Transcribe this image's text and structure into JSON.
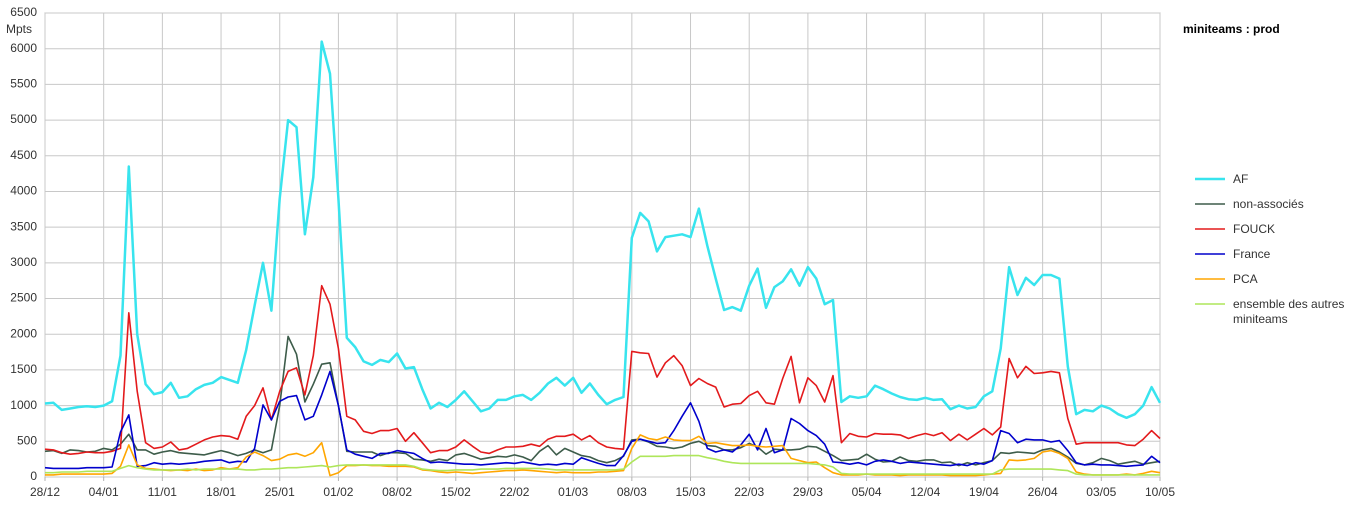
{
  "chart_data": {
    "type": "line",
    "title": "miniteams : prod",
    "ylabel": "Mpts",
    "categories": [
      "28/12",
      null,
      null,
      null,
      null,
      null,
      null,
      "04/01",
      null,
      null,
      null,
      null,
      null,
      null,
      "11/01",
      null,
      null,
      null,
      null,
      null,
      null,
      "18/01",
      null,
      null,
      null,
      null,
      null,
      null,
      "25/01",
      null,
      null,
      null,
      null,
      null,
      null,
      "01/02",
      null,
      null,
      null,
      null,
      null,
      null,
      "08/02",
      null,
      null,
      null,
      null,
      null,
      null,
      "15/02",
      null,
      null,
      null,
      null,
      null,
      null,
      "22/02",
      null,
      null,
      null,
      null,
      null,
      null,
      "01/03",
      null,
      null,
      null,
      null,
      null,
      null,
      "08/03",
      null,
      null,
      null,
      null,
      null,
      null,
      "15/03",
      null,
      null,
      null,
      null,
      null,
      null,
      "22/03",
      null,
      null,
      null,
      null,
      null,
      null,
      "29/03",
      null,
      null,
      null,
      null,
      null,
      null,
      "05/04",
      null,
      null,
      null,
      null,
      null,
      null,
      "12/04",
      null,
      null,
      null,
      null,
      null,
      null,
      "19/04",
      null,
      null,
      null,
      null,
      null,
      null,
      "26/04",
      null,
      null,
      null,
      null,
      null,
      null,
      "03/05",
      null,
      null,
      null,
      null,
      null,
      null,
      "10/05"
    ],
    "ylim": [
      0,
      6500
    ],
    "yticks": [
      0,
      500,
      1000,
      1500,
      2000,
      2500,
      3000,
      3500,
      4000,
      4500,
      5000,
      5500,
      6000,
      6500
    ],
    "grid": true,
    "series": [
      {
        "name": "AF",
        "color": "#38e4ee",
        "values": [
          1030,
          1040,
          940,
          960,
          980,
          990,
          980,
          1000,
          1060,
          1700,
          4350,
          2000,
          1300,
          1160,
          1190,
          1320,
          1110,
          1130,
          1230,
          1290,
          1320,
          1400,
          1360,
          1320,
          1780,
          2400,
          3000,
          2330,
          3900,
          5000,
          4900,
          3400,
          4200,
          6100,
          5650,
          3900,
          1950,
          1820,
          1620,
          1570,
          1640,
          1610,
          1730,
          1520,
          1540,
          1230,
          960,
          1040,
          980,
          1080,
          1200,
          1060,
          920,
          960,
          1080,
          1080,
          1130,
          1150,
          1080,
          1180,
          1310,
          1390,
          1280,
          1390,
          1180,
          1310,
          1150,
          1020,
          1080,
          1120,
          3350,
          3700,
          3580,
          3160,
          3360,
          3380,
          3400,
          3360,
          3760,
          3240,
          2780,
          2340,
          2380,
          2330,
          2680,
          2920,
          2370,
          2660,
          2740,
          2910,
          2680,
          2940,
          2780,
          2420,
          2480,
          1050,
          1130,
          1110,
          1130,
          1280,
          1230,
          1170,
          1120,
          1090,
          1080,
          1110,
          1080,
          1090,
          950,
          1000,
          960,
          980,
          1130,
          1200,
          1800,
          2940,
          2550,
          2790,
          2690,
          2830,
          2830,
          2780,
          1550,
          880,
          940,
          920,
          1000,
          960,
          880,
          830,
          880,
          1000,
          1260,
          1040
        ]
      },
      {
        "name": "non-associés",
        "color": "#3d5c4a",
        "values": [
          360,
          370,
          330,
          380,
          370,
          350,
          360,
          400,
          380,
          460,
          600,
          380,
          380,
          320,
          350,
          370,
          340,
          330,
          320,
          310,
          340,
          370,
          340,
          300,
          330,
          380,
          340,
          380,
          1000,
          1970,
          1720,
          1050,
          1300,
          1580,
          1600,
          1000,
          360,
          350,
          350,
          350,
          300,
          340,
          340,
          330,
          250,
          240,
          220,
          250,
          230,
          310,
          330,
          290,
          250,
          270,
          290,
          280,
          310,
          280,
          230,
          360,
          440,
          310,
          400,
          350,
          300,
          280,
          230,
          200,
          230,
          290,
          520,
          530,
          490,
          430,
          420,
          400,
          420,
          470,
          500,
          440,
          430,
          380,
          380,
          410,
          470,
          420,
          320,
          390,
          380,
          380,
          390,
          430,
          420,
          360,
          300,
          230,
          240,
          250,
          320,
          250,
          210,
          220,
          280,
          230,
          220,
          240,
          240,
          200,
          210,
          160,
          200,
          170,
          200,
          230,
          340,
          330,
          350,
          340,
          330,
          380,
          400,
          350,
          280,
          190,
          170,
          200,
          260,
          230,
          180,
          200,
          220,
          180,
          200,
          220
        ]
      },
      {
        "name": "FOUCK",
        "color": "#e31a1c",
        "values": [
          390,
          380,
          340,
          320,
          330,
          350,
          340,
          340,
          360,
          400,
          2300,
          1200,
          480,
          400,
          420,
          490,
          380,
          400,
          460,
          520,
          560,
          580,
          570,
          530,
          850,
          1000,
          1250,
          800,
          1200,
          1480,
          1530,
          1150,
          1700,
          2680,
          2420,
          1800,
          850,
          800,
          640,
          610,
          650,
          650,
          680,
          500,
          620,
          480,
          340,
          370,
          370,
          420,
          520,
          430,
          350,
          330,
          380,
          420,
          420,
          430,
          460,
          430,
          530,
          570,
          570,
          600,
          520,
          580,
          480,
          420,
          400,
          390,
          1760,
          1740,
          1730,
          1400,
          1600,
          1700,
          1560,
          1280,
          1380,
          1310,
          1260,
          980,
          1020,
          1030,
          1140,
          1200,
          1040,
          1020,
          1380,
          1690,
          1040,
          1390,
          1280,
          1050,
          1420,
          480,
          610,
          570,
          560,
          610,
          600,
          600,
          590,
          540,
          580,
          610,
          580,
          620,
          510,
          600,
          520,
          600,
          680,
          590,
          700,
          1660,
          1390,
          1550,
          1450,
          1460,
          1480,
          1460,
          820,
          460,
          480,
          480,
          480,
          480,
          480,
          450,
          440,
          530,
          650,
          540
        ]
      },
      {
        "name": "France",
        "color": "#0000cc",
        "values": [
          130,
          120,
          120,
          120,
          120,
          130,
          130,
          130,
          140,
          630,
          870,
          150,
          160,
          200,
          180,
          190,
          180,
          190,
          200,
          220,
          230,
          240,
          200,
          220,
          210,
          400,
          1010,
          800,
          1060,
          1120,
          1140,
          800,
          850,
          1150,
          1480,
          1000,
          380,
          320,
          290,
          260,
          330,
          330,
          370,
          350,
          330,
          260,
          200,
          210,
          200,
          190,
          180,
          180,
          170,
          180,
          190,
          200,
          190,
          210,
          190,
          170,
          180,
          170,
          190,
          180,
          270,
          230,
          190,
          160,
          160,
          300,
          500,
          530,
          500,
          470,
          480,
          650,
          850,
          1040,
          780,
          400,
          350,
          380,
          350,
          450,
          600,
          380,
          680,
          340,
          380,
          820,
          750,
          650,
          580,
          460,
          210,
          200,
          180,
          200,
          170,
          220,
          240,
          220,
          190,
          210,
          200,
          190,
          180,
          170,
          160,
          180,
          160,
          200,
          180,
          230,
          650,
          610,
          480,
          530,
          520,
          520,
          490,
          510,
          370,
          200,
          170,
          180,
          170,
          170,
          160,
          150,
          160,
          170,
          290,
          200
        ]
      },
      {
        "name": "PCA",
        "color": "#ffa600",
        "values": [
          30,
          30,
          40,
          40,
          40,
          40,
          40,
          40,
          50,
          150,
          450,
          170,
          120,
          110,
          100,
          90,
          100,
          90,
          110,
          90,
          100,
          130,
          110,
          130,
          280,
          350,
          300,
          230,
          250,
          310,
          330,
          290,
          340,
          480,
          20,
          60,
          160,
          160,
          170,
          160,
          160,
          150,
          150,
          150,
          140,
          100,
          90,
          70,
          60,
          70,
          60,
          50,
          60,
          70,
          80,
          90,
          90,
          100,
          90,
          80,
          70,
          60,
          70,
          60,
          60,
          60,
          70,
          70,
          80,
          90,
          400,
          590,
          540,
          520,
          560,
          520,
          510,
          510,
          570,
          470,
          480,
          460,
          440,
          440,
          450,
          430,
          420,
          430,
          440,
          260,
          230,
          200,
          210,
          130,
          60,
          30,
          30,
          30,
          40,
          30,
          30,
          30,
          20,
          30,
          30,
          30,
          30,
          30,
          20,
          20,
          20,
          20,
          30,
          40,
          50,
          240,
          230,
          240,
          260,
          350,
          370,
          330,
          260,
          70,
          40,
          30,
          30,
          30,
          30,
          40,
          30,
          50,
          80,
          60
        ]
      },
      {
        "name": "ensemble des autres miniteams",
        "color": "#aee65a",
        "values": [
          60,
          60,
          70,
          70,
          70,
          80,
          80,
          80,
          80,
          120,
          160,
          130,
          110,
          100,
          100,
          100,
          100,
          110,
          100,
          110,
          110,
          110,
          110,
          110,
          100,
          100,
          110,
          110,
          120,
          130,
          130,
          140,
          150,
          160,
          140,
          160,
          170,
          170,
          170,
          170,
          170,
          170,
          170,
          170,
          150,
          110,
          100,
          90,
          90,
          100,
          100,
          100,
          110,
          110,
          110,
          120,
          120,
          120,
          120,
          120,
          110,
          100,
          100,
          100,
          100,
          100,
          100,
          100,
          100,
          110,
          210,
          290,
          290,
          290,
          290,
          300,
          300,
          300,
          300,
          270,
          250,
          220,
          200,
          190,
          190,
          190,
          190,
          190,
          190,
          190,
          190,
          190,
          180,
          170,
          140,
          50,
          40,
          40,
          40,
          40,
          40,
          40,
          40,
          40,
          40,
          40,
          40,
          40,
          40,
          40,
          40,
          40,
          40,
          40,
          100,
          110,
          110,
          110,
          110,
          110,
          110,
          100,
          90,
          40,
          30,
          30,
          30,
          30,
          30,
          30,
          30,
          30,
          30,
          30
        ]
      }
    ]
  }
}
